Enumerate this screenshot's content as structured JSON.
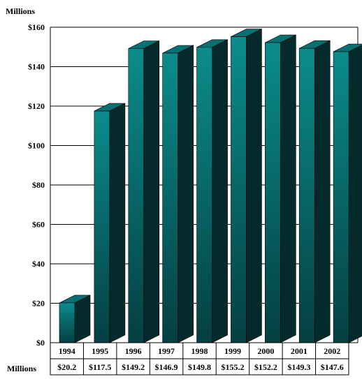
{
  "chart_data": {
    "type": "bar",
    "unit_label_top": "Millions",
    "table_row_label": "Millions",
    "categories": [
      "1994",
      "1995",
      "1996",
      "1997",
      "1998",
      "1999",
      "2000",
      "2001",
      "2002"
    ],
    "values": [
      20.2,
      117.5,
      149.2,
      146.9,
      149.8,
      155.2,
      152.2,
      149.3,
      147.6
    ],
    "value_labels": [
      "$20.2",
      "$117.5",
      "$149.2",
      "$146.9",
      "$149.8",
      "$155.2",
      "$152.2",
      "$149.3",
      "$147.6"
    ],
    "y_ticks": [
      0,
      20,
      40,
      60,
      80,
      100,
      120,
      140,
      160
    ],
    "y_tick_labels": [
      "$0",
      "$20",
      "$40",
      "$60",
      "$80",
      "$100",
      "$120",
      "$140",
      "$160"
    ],
    "ylim": [
      0,
      160
    ],
    "grid": true,
    "bar_style": "3d",
    "colors": {
      "bar_front_light": "#0b8c8c",
      "bar_front_dark": "#053f42",
      "bar_side": "#042a2c",
      "bar_top": "#0a6f70",
      "grid": "#000000"
    }
  }
}
